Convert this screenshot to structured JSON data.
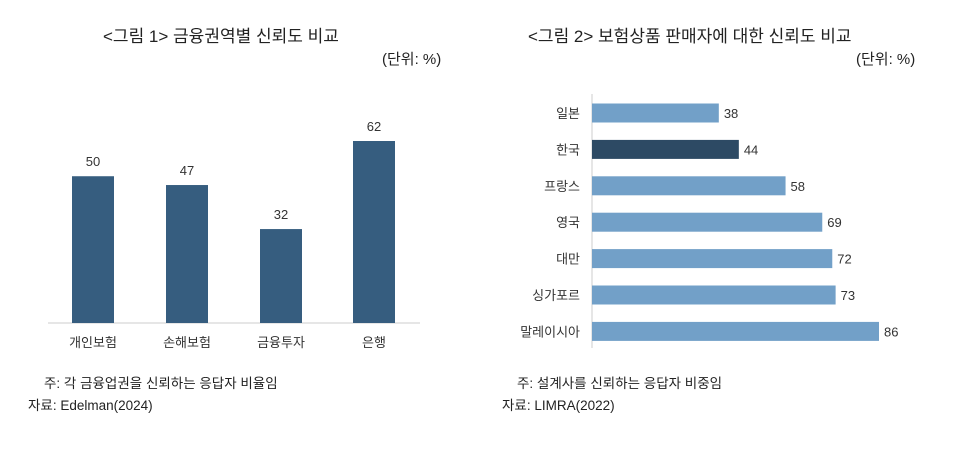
{
  "chart_data": [
    {
      "type": "bar",
      "orientation": "vertical",
      "title": "<그림 1> 금융권역별 신뢰도 비교",
      "unit": "(단위: %)",
      "categories": [
        "개인보험",
        "손해보험",
        "금융투자",
        "은행"
      ],
      "values": [
        50,
        47,
        32,
        62
      ],
      "ylim": [
        0,
        62
      ],
      "grid": false,
      "color": "#365d7f",
      "note": "주: 각 금융업권을 신뢰하는 응답자 비율임",
      "source": "자료: Edelman(2024)"
    },
    {
      "type": "bar",
      "orientation": "horizontal",
      "title": "<그림 2> 보험상품 판매자에 대한 신뢰도 비교",
      "unit": "(단위: %)",
      "categories": [
        "일본",
        "한국",
        "프랑스",
        "영국",
        "대만",
        "싱가포르",
        "말레이시아"
      ],
      "values": [
        38,
        44,
        58,
        69,
        72,
        73,
        86
      ],
      "xlim": [
        0,
        86
      ],
      "grid": false,
      "color": "#72a0c8",
      "highlight_color": "#2d4a64",
      "highlight": "한국",
      "note": "주: 설계사를 신뢰하는 응답자 비중임",
      "source": "자료: LIMRA(2022)"
    }
  ]
}
